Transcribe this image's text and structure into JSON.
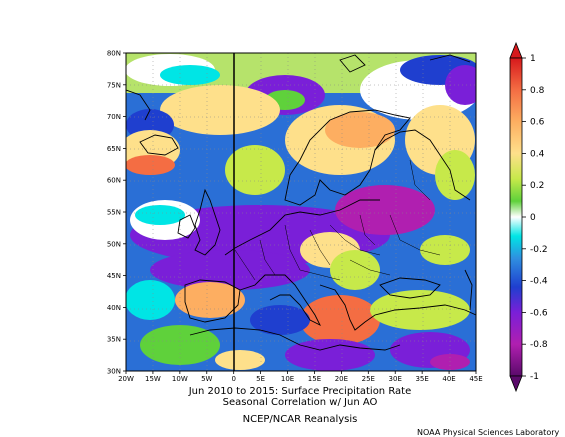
{
  "title_line1": "Jun 2010 to 2015: Surface Precipitation Rate",
  "title_line2": "Seasonal Correlation w/ Jun AO",
  "source": "NCEP/NCAR Reanalysis",
  "lab": "NOAA Physical Sciences Laboratory",
  "lat_labels": [
    "80N",
    "75N",
    "70N",
    "65N",
    "60N",
    "55N",
    "50N",
    "45N",
    "40N",
    "35N",
    "30N"
  ],
  "lon_labels": [
    "20W",
    "15W",
    "10W",
    "5W",
    "0",
    "5E",
    "10E",
    "15E",
    "20E",
    "25E",
    "30E",
    "35E",
    "40E",
    "45E"
  ],
  "colorbar": {
    "tick_labels": [
      "1",
      "0.8",
      "0.6",
      "0.4",
      "0.2",
      "0",
      "-0.2",
      "-0.4",
      "-0.6",
      "-0.8",
      "-1"
    ],
    "colors": [
      "#d7191c",
      "#f46d43",
      "#fdae61",
      "#fee08b",
      "#c7e94a",
      "#7fd13b",
      "#ffffff",
      "#00e5e5",
      "#2f8fe0",
      "#1f3fcf",
      "#7a1fd8",
      "#b01fb0",
      "#5a0a6a"
    ]
  },
  "map": {
    "region": "Europe / North Atlantic",
    "lat_range": [
      30,
      80
    ],
    "lon_range": [
      -20,
      45
    ],
    "field": "correlation"
  }
}
